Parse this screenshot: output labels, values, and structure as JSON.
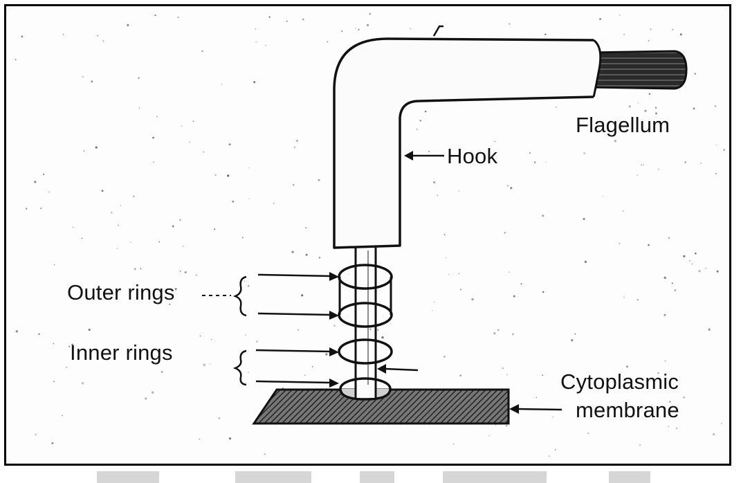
{
  "labels": {
    "flagellum": "Flagellum",
    "hook": "Hook",
    "outer_rings": "Outer rings",
    "inner_rings": "Inner rings",
    "cytoplasmic": "Cytoplasmic",
    "membrane": "membrane"
  },
  "colors": {
    "ink": "#111111",
    "paper": "#fdfdfd",
    "frame": "#000000",
    "hatch": "#222222",
    "filament_fill": "#3a3a3a"
  }
}
